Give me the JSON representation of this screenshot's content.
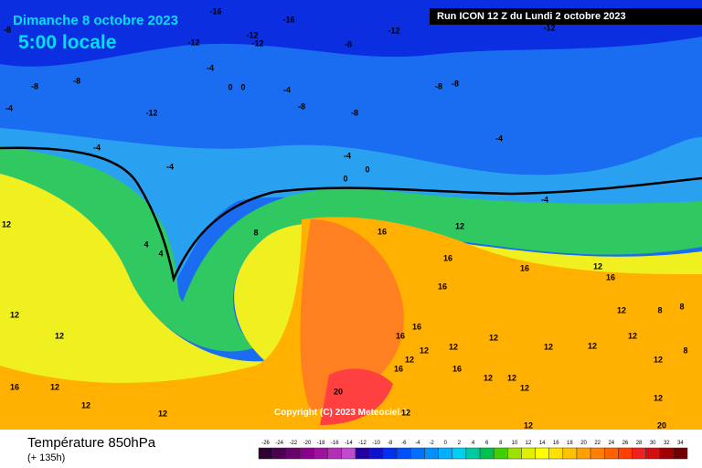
{
  "header": {
    "date": "Dimanche 8 octobre 2023",
    "time": "5:00 locale",
    "run": "Run ICON 12 Z du Lundi 2 octobre 2023"
  },
  "footer": {
    "title": "Température 850hPa",
    "lead": "(+ 135h)",
    "copyright": "Copyright (C) 2023 Meteociel.fr"
  },
  "map_labels": [
    -16,
    -16,
    -8,
    -12,
    -12,
    -12,
    -8,
    -12,
    -12,
    -8,
    -8,
    -4,
    0,
    0,
    -4,
    -8,
    -8,
    -4,
    -12,
    -8,
    -8,
    -4,
    -4,
    -4,
    0,
    0,
    -4,
    -4,
    8,
    4,
    4,
    12,
    16,
    12,
    16,
    16,
    12,
    16,
    16,
    12,
    8,
    8,
    12,
    12,
    16,
    16,
    12,
    12,
    12,
    12,
    12,
    12,
    8,
    12,
    16,
    16,
    12,
    12,
    12,
    12,
    20,
    16,
    12,
    12,
    12,
    12,
    12,
    12,
    20
  ],
  "legend": {
    "ticks": [
      -26,
      -24,
      -22,
      -20,
      -18,
      -16,
      -14,
      -12,
      -10,
      -8,
      -6,
      -4,
      -2,
      0,
      2,
      4,
      6,
      8,
      10,
      12,
      14,
      16,
      18,
      20,
      22,
      24,
      26,
      28,
      30,
      32,
      34
    ],
    "colors": [
      "#2e0033",
      "#4b0050",
      "#6a006e",
      "#8b008b",
      "#a0109e",
      "#b52cb5",
      "#c04bd0",
      "#2000a0",
      "#1010d0",
      "#0030f0",
      "#0050ff",
      "#0070ff",
      "#0090ff",
      "#00b0ff",
      "#00d0f0",
      "#00c8a0",
      "#00c050",
      "#40d000",
      "#a0e000",
      "#e0f000",
      "#ffff00",
      "#ffe000",
      "#ffc000",
      "#ffa000",
      "#ff8000",
      "#ff6000",
      "#ff4000",
      "#f02020",
      "#d01010",
      "#a00000",
      "#700000"
    ]
  }
}
